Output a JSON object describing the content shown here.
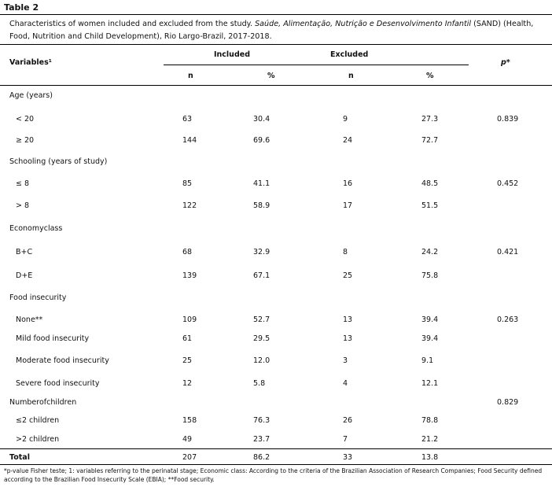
{
  "table_label": "Table 2",
  "caption": {
    "prefix": "Characteristics of women included and excluded from the study. ",
    "italic": "Saúde, Alimentação, Nutrição e Desenvolvimento Infantil",
    "suffix": " (SAND) (Health, Food, Nutrition and Child Development), Rio Largo-Brazil, 2017-2018."
  },
  "header": {
    "variables": "Variables¹",
    "included": "Included",
    "excluded": "Excluded",
    "p": "p*",
    "n": "n",
    "percent": "%"
  },
  "rows": [
    {
      "type": "group",
      "label": "Age (years)"
    },
    {
      "type": "data",
      "label": "< 20",
      "in_n": "63",
      "in_pct": "30.4",
      "ex_n": "9",
      "ex_pct": "27.3",
      "p": "0.839"
    },
    {
      "type": "data",
      "label": "≥ 20",
      "in_n": "144",
      "in_pct": "69.6",
      "ex_n": "24",
      "ex_pct": "72.7",
      "p": ""
    },
    {
      "type": "group",
      "label": "Schooling (years of study)"
    },
    {
      "type": "data",
      "label": "≤ 8",
      "in_n": "85",
      "in_pct": "41.1",
      "ex_n": "16",
      "ex_pct": "48.5",
      "p": "0.452"
    },
    {
      "type": "data",
      "label": "> 8",
      "in_n": "122",
      "in_pct": "58.9",
      "ex_n": "17",
      "ex_pct": "51.5",
      "p": ""
    },
    {
      "type": "group",
      "label": "Economyclass"
    },
    {
      "type": "data",
      "label": "B+C",
      "in_n": "68",
      "in_pct": "32.9",
      "ex_n": "8",
      "ex_pct": "24.2",
      "p": "0.421"
    },
    {
      "type": "data",
      "label": "D+E",
      "in_n": "139",
      "in_pct": "67.1",
      "ex_n": "25",
      "ex_pct": "75.8",
      "p": ""
    },
    {
      "type": "group",
      "label": "Food insecurity"
    },
    {
      "type": "data",
      "label": "None**",
      "in_n": "109",
      "in_pct": "52.7",
      "ex_n": "13",
      "ex_pct": "39.4",
      "p": "0.263"
    },
    {
      "type": "data",
      "label": "Mild food insecurity",
      "in_n": "61",
      "in_pct": "29.5",
      "ex_n": "13",
      "ex_pct": "39.4",
      "p": ""
    },
    {
      "type": "data",
      "label": "Moderate food insecurity",
      "in_n": "25",
      "in_pct": "12.0",
      "ex_n": "3",
      "ex_pct": "9.1",
      "p": ""
    },
    {
      "type": "data",
      "label": "Severe food insecurity",
      "in_n": "12",
      "in_pct": "5.8",
      "ex_n": "4",
      "ex_pct": "12.1",
      "p": ""
    },
    {
      "type": "group",
      "label": "Numberofchildren",
      "p": "0.829"
    },
    {
      "type": "data",
      "label": "≤2  children",
      "in_n": "158",
      "in_pct": "76.3",
      "ex_n": "26",
      "ex_pct": "78.8",
      "p": ""
    },
    {
      "type": "data",
      "label": ">2 children",
      "in_n": "49",
      "in_pct": "23.7",
      "ex_n": "7",
      "ex_pct": "21.2",
      "p": ""
    }
  ],
  "total": {
    "label": "Total",
    "in_n": "207",
    "in_pct": "86.2",
    "ex_n": "33",
    "ex_pct": "13.8"
  },
  "footnote": "*p-value Fisher teste; 1: variables referring to the perinatal stage; Economic class: According to the criteria of the Brazilian Association of Research Companies; Food Security defined according to the Brazilian Food Insecurity Scale (EBIA); **Food security."
}
